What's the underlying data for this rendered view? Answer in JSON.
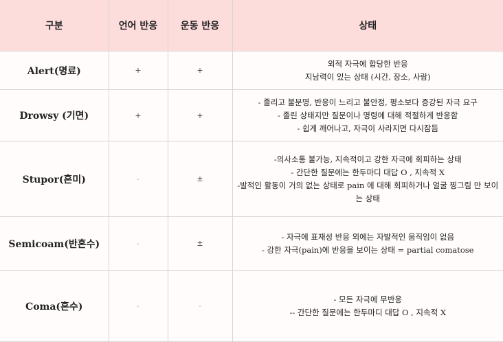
{
  "headers": [
    "구분",
    "언어 반응",
    "운동 반응",
    "상태"
  ],
  "rows": [
    {
      "label": "Alert(명료)",
      "verbal": "+",
      "motor": "+",
      "state": [
        "외적 자극에 합당한 반응",
        "지남력이 있는 상태 (시간, 장소, 사람)"
      ]
    },
    {
      "label": "Drowsy (기면)",
      "verbal": "+",
      "motor": "+",
      "state": [
        "- 졸리고 불분명, 반응이 느리고 불안정, 평소보다 증강된 자극 요구",
        "- 졸린 상태지만 질문이나 명령에 대해 적절하게 반응함",
        "- 쉽게 깨어나고, 자극이 사라지면 다시잠듬"
      ]
    },
    {
      "label": "Stupor(혼미)",
      "verbal": "-",
      "motor": "±",
      "state": [
        "-의사소통 불가능, 지속적이고 강한 자극에 회피하는 상태",
        "- 간단한 질문에는 한두마디 대답 O , 지속적 X",
        "-발적인 활동이 거의 없는 상태로 pain 에 대해 회피하거나 얼굴 찡그림 만 보이는 상태"
      ]
    },
    {
      "label": "Semicoam(반혼수)",
      "verbal": "-",
      "motor": "±",
      "state": [
        "- 자극에 표재성 반응 외에는 자발적인 움직임이 없음",
        "- 강한 자극(pain)에 반응을 보이는 상태 = partial comatose"
      ]
    },
    {
      "label": "Coma(혼수)",
      "verbal": "-",
      "motor": "-",
      "state": [
        "- 모든 자극에 무반응",
        "-- 간단한 질문에는 한두마디 대답 O , 지속적 X"
      ]
    }
  ],
  "colors": {
    "header_bg": "#fddcdc",
    "body_bg": "#fffcfb",
    "grid": "#d6d6d6"
  }
}
